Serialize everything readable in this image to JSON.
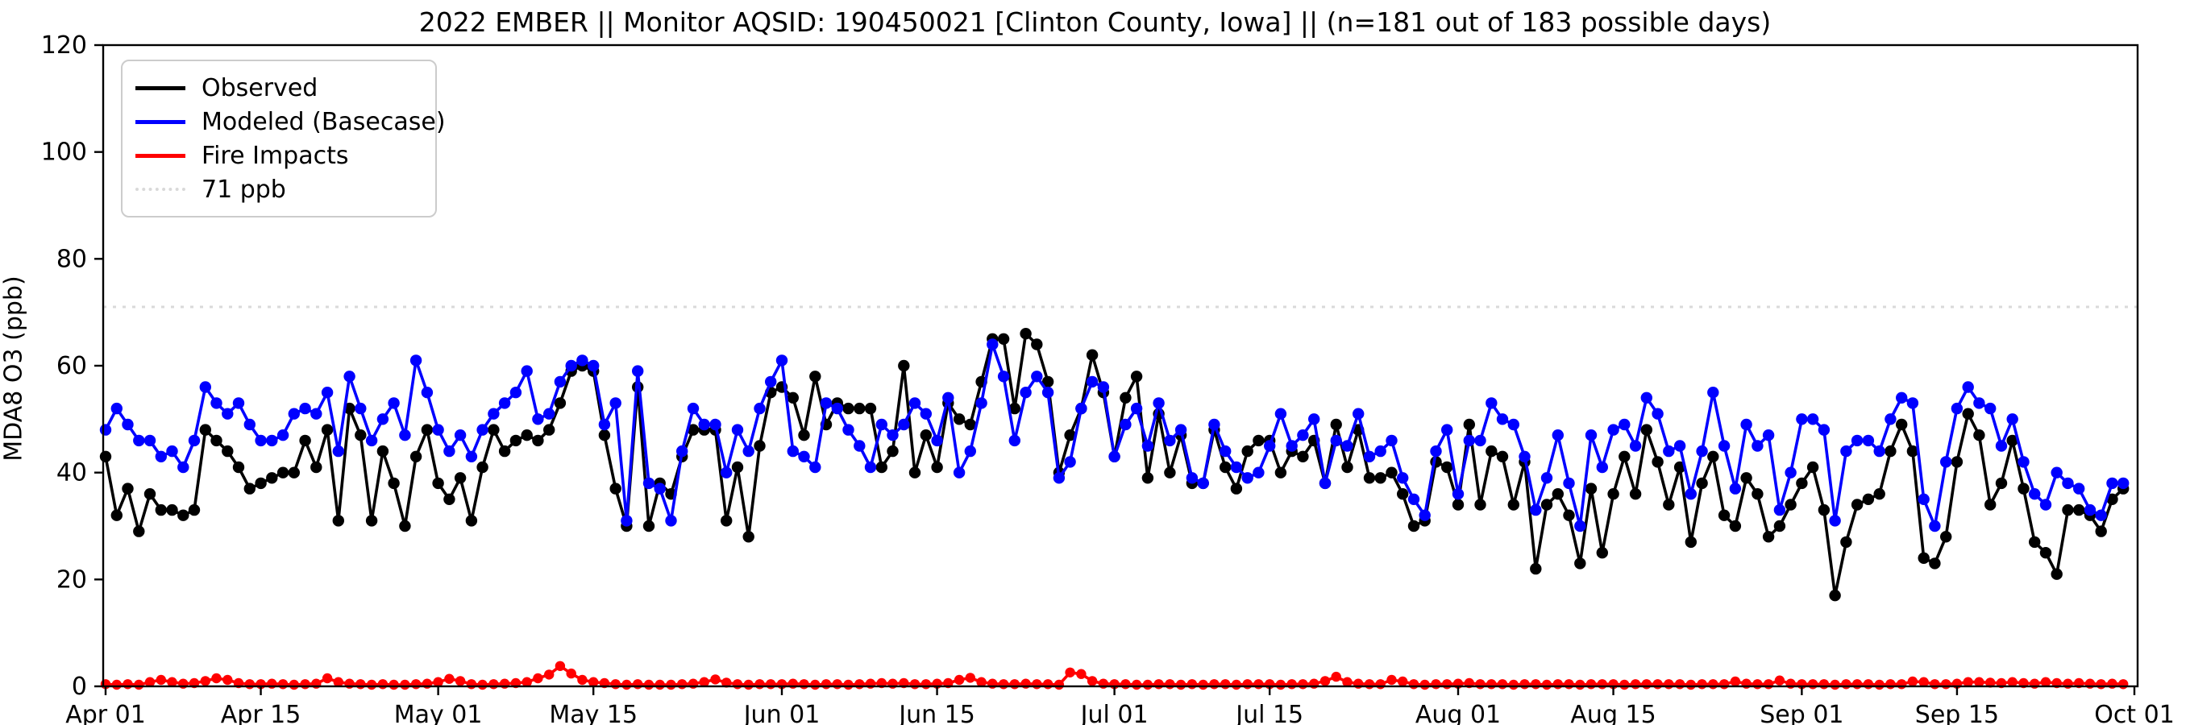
{
  "title": "2022 EMBER || Monitor AQSID: 190450021 [Clinton County, Iowa] || (n=181 out of 183 possible days)",
  "axes": {
    "ylabel": "MDA8 O3 (ppb)",
    "ylim": [
      0,
      120
    ],
    "yticks": [
      0,
      20,
      40,
      60,
      80,
      100,
      120
    ],
    "xtick_labels": [
      "Apr 01",
      "Apr 15",
      "May 01",
      "May 15",
      "Jun 01",
      "Jun 15",
      "Jul 01",
      "Jul 15",
      "Aug 01",
      "Aug 15",
      "Sep 01",
      "Sep 15",
      "Oct 01"
    ],
    "xtick_days": [
      0,
      14,
      30,
      44,
      61,
      75,
      91,
      105,
      122,
      136,
      153,
      167,
      183
    ],
    "grid": false
  },
  "legend": {
    "position": "upper-left",
    "items": [
      {
        "label": "Observed",
        "color": "#000000",
        "style": "solid"
      },
      {
        "label": "Modeled (Basecase)",
        "color": "#0000ff",
        "style": "solid"
      },
      {
        "label": "Fire Impacts",
        "color": "#ff0000",
        "style": "solid"
      },
      {
        "label": "71 ppb",
        "color": "#d9d9d9",
        "style": "dotted"
      }
    ]
  },
  "chart_data": {
    "type": "line",
    "x_unit": "day",
    "x_start": "Apr 01",
    "x_end": "Sep 30",
    "n_points": 183,
    "threshold": {
      "value": 71,
      "label": "71 ppb",
      "color": "#d9d9d9"
    },
    "series": [
      {
        "name": "Observed",
        "color": "#000000",
        "marker": "circle",
        "values": [
          43,
          32,
          37,
          29,
          36,
          33,
          33,
          32,
          33,
          48,
          46,
          44,
          41,
          37,
          38,
          39,
          40,
          40,
          46,
          41,
          48,
          31,
          52,
          47,
          31,
          44,
          38,
          30,
          43,
          48,
          38,
          35,
          39,
          31,
          41,
          48,
          44,
          46,
          47,
          46,
          48,
          53,
          59,
          60,
          59,
          47,
          37,
          30,
          56,
          30,
          38,
          36,
          43,
          48,
          48,
          48,
          31,
          41,
          28,
          45,
          55,
          56,
          54,
          47,
          58,
          49,
          53,
          52,
          52,
          52,
          41,
          44,
          60,
          40,
          47,
          41,
          53,
          50,
          49,
          57,
          65,
          65,
          52,
          66,
          64,
          57,
          40,
          47,
          52,
          62,
          55,
          43,
          54,
          58,
          39,
          51,
          40,
          47,
          38,
          38,
          48,
          41,
          37,
          44,
          46,
          46,
          40,
          44,
          43,
          46,
          38,
          49,
          41,
          48,
          39,
          39,
          40,
          36,
          30,
          31,
          42,
          41,
          34,
          49,
          34,
          44,
          43,
          34,
          42,
          22,
          34,
          36,
          32,
          23,
          37,
          25,
          36,
          43,
          36,
          48,
          42,
          34,
          41,
          27,
          38,
          43,
          32,
          30,
          39,
          36,
          28,
          30,
          34,
          38,
          41,
          33,
          17,
          27,
          34,
          35,
          36,
          44,
          49,
          44,
          24,
          23,
          28,
          42,
          51,
          47,
          34,
          38,
          46,
          37,
          27,
          25,
          21,
          33,
          33,
          32,
          29,
          35,
          37
        ]
      },
      {
        "name": "Modeled (Basecase)",
        "color": "#0000ff",
        "marker": "circle",
        "values": [
          48,
          52,
          49,
          46,
          46,
          43,
          44,
          41,
          46,
          56,
          53,
          51,
          53,
          49,
          46,
          46,
          47,
          51,
          52,
          51,
          55,
          44,
          58,
          52,
          46,
          50,
          53,
          47,
          61,
          55,
          48,
          44,
          47,
          43,
          48,
          51,
          53,
          55,
          59,
          50,
          51,
          57,
          60,
          61,
          60,
          49,
          53,
          31,
          59,
          38,
          37,
          31,
          44,
          52,
          49,
          49,
          40,
          48,
          44,
          52,
          57,
          61,
          44,
          43,
          41,
          53,
          52,
          48,
          45,
          41,
          49,
          47,
          49,
          53,
          51,
          46,
          54,
          40,
          44,
          53,
          64,
          58,
          46,
          55,
          58,
          55,
          39,
          42,
          52,
          57,
          56,
          43,
          49,
          52,
          45,
          53,
          46,
          48,
          39,
          38,
          49,
          44,
          41,
          39,
          40,
          45,
          51,
          45,
          47,
          50,
          38,
          46,
          45,
          51,
          43,
          44,
          46,
          39,
          35,
          32,
          44,
          48,
          36,
          46,
          46,
          53,
          50,
          49,
          43,
          33,
          39,
          47,
          38,
          30,
          47,
          41,
          48,
          49,
          45,
          54,
          51,
          44,
          45,
          36,
          44,
          55,
          45,
          37,
          49,
          45,
          47,
          33,
          40,
          50,
          50,
          48,
          31,
          44,
          46,
          46,
          44,
          50,
          54,
          53,
          35,
          30,
          42,
          52,
          56,
          53,
          52,
          45,
          50,
          42,
          36,
          34,
          40,
          38,
          37,
          33,
          32,
          38,
          38
        ]
      },
      {
        "name": "Fire Impacts",
        "color": "#ff0000",
        "marker": "circle",
        "values": [
          0.4,
          0.3,
          0.4,
          0.3,
          0.8,
          1.2,
          0.8,
          0.5,
          0.6,
          1.0,
          1.5,
          1.2,
          0.6,
          0.4,
          0.4,
          0.5,
          0.4,
          0.3,
          0.4,
          0.5,
          1.5,
          0.8,
          0.5,
          0.4,
          0.3,
          0.4,
          0.3,
          0.3,
          0.4,
          0.5,
          0.8,
          1.4,
          1.0,
          0.4,
          0.3,
          0.4,
          0.5,
          0.6,
          0.8,
          1.5,
          2.2,
          3.8,
          2.4,
          1.2,
          0.8,
          0.6,
          0.4,
          0.3,
          0.4,
          0.3,
          0.3,
          0.3,
          0.4,
          0.5,
          0.8,
          1.3,
          0.7,
          0.4,
          0.3,
          0.4,
          0.4,
          0.4,
          0.5,
          0.4,
          0.3,
          0.4,
          0.4,
          0.3,
          0.4,
          0.5,
          0.6,
          0.5,
          0.6,
          0.4,
          0.4,
          0.5,
          0.6,
          1.2,
          1.6,
          0.8,
          0.5,
          0.4,
          0.4,
          0.5,
          0.4,
          0.4,
          0.3,
          2.6,
          2.3,
          1.0,
          0.5,
          0.4,
          0.4,
          0.3,
          0.3,
          0.4,
          0.4,
          0.3,
          0.4,
          0.3,
          0.4,
          0.4,
          0.3,
          0.4,
          0.4,
          0.4,
          0.3,
          0.4,
          0.4,
          0.5,
          1.0,
          1.8,
          0.8,
          0.5,
          0.4,
          0.4,
          1.2,
          0.9,
          0.4,
          0.3,
          0.4,
          0.4,
          0.5,
          0.6,
          0.4,
          0.4,
          0.4,
          0.3,
          0.4,
          0.4,
          0.3,
          0.4,
          0.4,
          0.3,
          0.4,
          0.4,
          0.4,
          0.3,
          0.4,
          0.4,
          0.4,
          0.4,
          0.4,
          0.3,
          0.4,
          0.4,
          0.4,
          0.9,
          0.5,
          0.4,
          0.4,
          1.1,
          0.5,
          0.4,
          0.4,
          0.4,
          0.3,
          0.4,
          0.4,
          0.4,
          0.3,
          0.4,
          0.4,
          0.9,
          0.8,
          0.4,
          0.4,
          0.5,
          0.8,
          0.8,
          0.7,
          0.6,
          0.8,
          0.6,
          0.5,
          0.8,
          0.6,
          0.5,
          0.6,
          0.5,
          0.4,
          0.5,
          0.4
        ]
      }
    ]
  }
}
